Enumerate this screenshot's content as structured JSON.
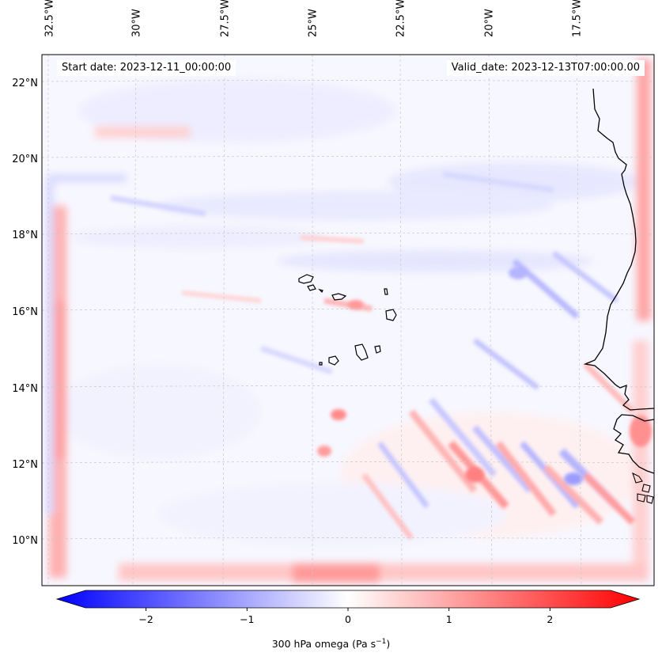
{
  "map": {
    "start_date": "Start date: 2023-12-11_00:00:00",
    "valid_date": "Valid_date: 2023-12-13T07:00:00.00",
    "lon_labels": [
      "32.5°W",
      "30°W",
      "27.5°W",
      "25°W",
      "22.5°W",
      "20°W",
      "17.5°W"
    ],
    "lat_labels": [
      "22°N",
      "20°N",
      "18°N",
      "16°N",
      "14°N",
      "12°N",
      "10°N"
    ],
    "extent": {
      "lon_min": -33.1,
      "lon_max": -15.8,
      "lat_min": 8.9,
      "lat_max": 22.8
    },
    "gridlines": true,
    "features": [
      "coastline",
      "Cape Verde islands"
    ],
    "colormap": "bwr",
    "colors": {
      "negative": "#0000ff",
      "zero": "#ffffff",
      "positive": "#ff0000",
      "coast": "#000000"
    }
  },
  "colorbar": {
    "title": "300 hPa omega (Pa s",
    "title_sup": "−1",
    "title_end": ")",
    "ticks": [
      "−2",
      "−1",
      "0",
      "1",
      "2"
    ],
    "tick_values": [
      -2,
      -1,
      0,
      1,
      2
    ],
    "range": [
      -2.6,
      2.6
    ],
    "extend": "both"
  }
}
